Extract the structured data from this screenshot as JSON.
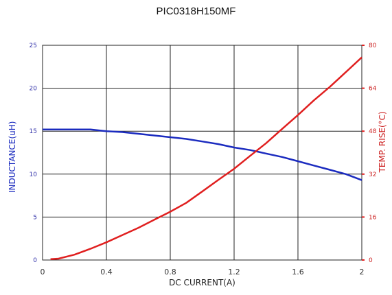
{
  "chart_data": {
    "type": "line",
    "title": "PIC0318H150MF",
    "xlabel": "DC CURRENT(A)",
    "ylabel_left": "INDUCTANCE(uH)",
    "ylabel_right": "TEMP. RISE(°C)",
    "xlim": [
      0,
      2
    ],
    "ylim_left": [
      0,
      25
    ],
    "ylim_right": [
      0,
      80
    ],
    "x_ticks": [
      "0",
      "0.4",
      "0.8",
      "1.2",
      "1.6",
      "2"
    ],
    "y_left_ticks": [
      "0",
      "5",
      "10",
      "15",
      "20",
      "25"
    ],
    "y_right_ticks": [
      "0",
      "16",
      "32",
      "48",
      "64",
      "80"
    ],
    "grid": true,
    "series": [
      {
        "name": "INDUCTANCE(uH)",
        "axis": "left",
        "color": "#1b2bbf",
        "x": [
          0,
          0.1,
          0.2,
          0.3,
          0.4,
          0.5,
          0.6,
          0.7,
          0.8,
          0.9,
          1.0,
          1.1,
          1.2,
          1.3,
          1.4,
          1.5,
          1.6,
          1.7,
          1.8,
          1.9,
          2.0
        ],
        "y": [
          15.2,
          15.2,
          15.2,
          15.2,
          15.0,
          14.9,
          14.7,
          14.5,
          14.3,
          14.1,
          13.8,
          13.5,
          13.1,
          12.8,
          12.4,
          12.0,
          11.5,
          11.0,
          10.5,
          10.0,
          9.3
        ]
      },
      {
        "name": "TEMP. RISE(°C)",
        "axis": "right",
        "color": "#e01f1f",
        "x": [
          0.05,
          0.1,
          0.2,
          0.3,
          0.4,
          0.5,
          0.6,
          0.7,
          0.8,
          0.9,
          1.0,
          1.1,
          1.2,
          1.3,
          1.4,
          1.5,
          1.6,
          1.7,
          1.8,
          1.9,
          2.0
        ],
        "y": [
          0.3,
          0.5,
          2.0,
          4.2,
          6.6,
          9.3,
          12.0,
          15.0,
          18.0,
          21.3,
          25.5,
          29.8,
          34.0,
          38.8,
          43.5,
          48.8,
          54.0,
          59.5,
          64.5,
          70.0,
          75.5
        ]
      }
    ]
  }
}
